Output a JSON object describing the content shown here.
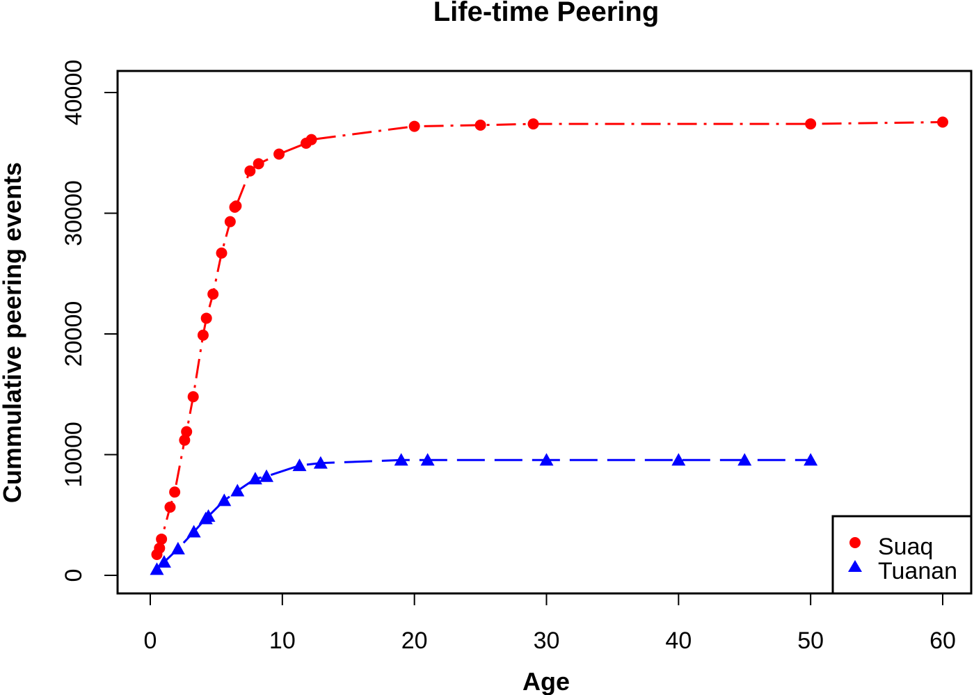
{
  "chart_data": {
    "type": "scatter",
    "title": "Life-time Peering",
    "xlabel": "Age",
    "ylabel": "Cummulative peering events",
    "xlim": [
      0,
      60
    ],
    "ylim": [
      0,
      40000
    ],
    "xticks": [
      0,
      10,
      20,
      30,
      40,
      50,
      60
    ],
    "yticks": [
      0,
      10000,
      20000,
      30000,
      40000
    ],
    "grid": false,
    "legend_position": "bottom-right",
    "series": [
      {
        "name": "Suaq",
        "color": "#ff0000",
        "marker": "circle",
        "line": "dash-dot",
        "x": [
          0.5,
          0.7,
          0.85,
          1.5,
          1.85,
          2.6,
          2.75,
          3.25,
          4.0,
          4.25,
          4.75,
          5.4,
          6.05,
          6.4,
          6.5,
          7.55,
          8.2,
          9.75,
          11.8,
          12.2,
          20,
          25,
          29,
          50,
          60
        ],
        "y": [
          1730,
          2250,
          3000,
          5650,
          6900,
          11200,
          11900,
          14800,
          19900,
          21300,
          23300,
          26700,
          29300,
          30500,
          30600,
          33500,
          34100,
          34900,
          35800,
          36100,
          37200,
          37300,
          37400,
          37400,
          37550
        ]
      },
      {
        "name": "Tuanan",
        "color": "#0000ff",
        "marker": "triangle",
        "line": "long-dash",
        "x": [
          0.5,
          1.05,
          2.1,
          3.3,
          4.2,
          4.4,
          5.6,
          6.6,
          7.95,
          8.8,
          11.3,
          12.9,
          19,
          21,
          30,
          40,
          45,
          50
        ],
        "y": [
          500,
          1100,
          2200,
          3600,
          4700,
          4900,
          6200,
          7000,
          8000,
          8200,
          9100,
          9300,
          9550,
          9550,
          9550,
          9550,
          9550,
          9550
        ]
      }
    ]
  }
}
